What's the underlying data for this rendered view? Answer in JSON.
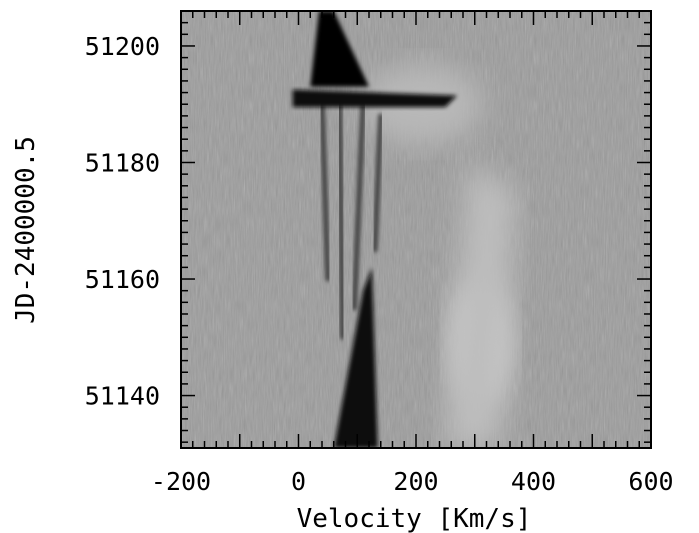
{
  "chart_data": {
    "type": "heatmap",
    "title": "",
    "xlabel": "Velocity [Km/s]",
    "ylabel": "JD-2400000.5",
    "xlim": [
      -200,
      600
    ],
    "ylim": [
      51131,
      51206
    ],
    "x_ticks": [
      -200,
      0,
      200,
      400,
      600
    ],
    "x_tick_labels": [
      "-200",
      "0",
      "200",
      "400",
      "600"
    ],
    "y_ticks": [
      51140,
      51160,
      51180,
      51200
    ],
    "y_tick_labels": [
      "51140",
      "51160",
      "51180",
      "51200"
    ],
    "colormap": "grayscale",
    "grid": false,
    "features": [
      {
        "kind": "blob",
        "description": "dark absorption",
        "x": [
          30,
          120
        ],
        "y": [
          51190,
          51206
        ]
      },
      {
        "kind": "band",
        "description": "dark horizontal band",
        "x": [
          -10,
          270
        ],
        "y": [
          51189.5,
          51192.5
        ]
      },
      {
        "kind": "wedge",
        "description": "dark absorption",
        "x": [
          60,
          140
        ],
        "y": [
          51131,
          51162
        ]
      },
      {
        "kind": "bright",
        "description": "emission",
        "x": [
          260,
          360
        ],
        "y": [
          51138,
          51160
        ]
      }
    ]
  }
}
